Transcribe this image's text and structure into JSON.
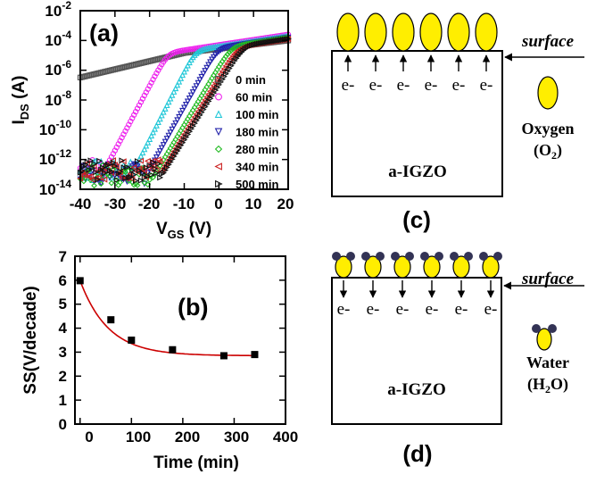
{
  "chart_data": [
    {
      "type": "scatter",
      "panel_label": "(a)",
      "title": "",
      "ylabel": "I",
      "ylabel_sub": "DS",
      "ylabel_unit": " (A)",
      "xlabel": "V",
      "xlabel_sub": "GS",
      "xlabel_unit": " (V)",
      "xlim": [
        -40,
        20
      ],
      "ylim_exp": [
        -14,
        -2
      ],
      "yscale": "log",
      "x_ticks": [
        "-40",
        "-30",
        "-20",
        "-10",
        "0",
        "10",
        "20"
      ],
      "y_ticks": [
        {
          "base": "10",
          "exp": "-2"
        },
        {
          "base": "10",
          "exp": "-4"
        },
        {
          "base": "10",
          "exp": "-6"
        },
        {
          "base": "10",
          "exp": "-8"
        },
        {
          "base": "10",
          "exp": "-10"
        },
        {
          "base": "10",
          "exp": "-12"
        },
        {
          "base": "10",
          "exp": "-14"
        }
      ],
      "series": [
        {
          "name": "0 min",
          "marker": "square",
          "color": "#555555",
          "mode": "on",
          "ion": -4.6,
          "slope": 0.016
        },
        {
          "name": "60 min",
          "marker": "circle",
          "color": "#ee22ee",
          "mode": "trans",
          "von": -33,
          "ss": 2.3,
          "ion": -3.6,
          "ioff": -12.7
        },
        {
          "name": "100 min",
          "marker": "triangle-up",
          "color": "#22c8d8",
          "mode": "trans",
          "von": -25,
          "ss": 2.2,
          "ion": -3.7,
          "ioff": -12.9
        },
        {
          "name": "180 min",
          "marker": "triangle-down",
          "color": "#2222aa",
          "mode": "trans",
          "von": -21,
          "ss": 2.4,
          "ion": -3.8,
          "ioff": -13.1
        },
        {
          "name": "280 min",
          "marker": "diamond",
          "color": "#22bb22",
          "mode": "trans",
          "von": -19,
          "ss": 2.55,
          "ion": -3.8,
          "ioff": -13.2
        },
        {
          "name": "340 min",
          "marker": "triangle-left",
          "color": "#cc2222",
          "mode": "trans",
          "von": -16.5,
          "ss": 2.6,
          "ion": -3.9,
          "ioff": -12.8
        },
        {
          "name": "500 min",
          "marker": "triangle-right",
          "color": "#111111",
          "mode": "trans",
          "von": -16,
          "ss": 2.7,
          "ion": -3.9,
          "ioff": -12.9
        }
      ]
    },
    {
      "type": "scatter",
      "panel_label": "(b)",
      "title": "",
      "xlabel": "Time (min)",
      "ylabel": "SS(V/decade)",
      "xlim": [
        -10,
        400
      ],
      "ylim": [
        0,
        7
      ],
      "x_ticks": [
        0,
        100,
        200,
        300,
        400
      ],
      "y_ticks": [
        0,
        1,
        2,
        3,
        4,
        5,
        6,
        7
      ],
      "points": {
        "x": [
          0,
          60,
          100,
          180,
          280,
          340
        ],
        "y": [
          5.98,
          4.35,
          3.5,
          3.1,
          2.85,
          2.9
        ]
      },
      "fit": {
        "color": "#cc0000",
        "y0": 2.85,
        "a": 3.13,
        "tau": 55
      }
    }
  ],
  "diagrams": {
    "c": {
      "label": "(c)",
      "surface_label": "surface",
      "material": "a-IGZO",
      "electron": "e-",
      "electron_count": 6,
      "molecule_label": "Oxygen",
      "formula_open": "(O",
      "formula_sub": "2",
      "formula_close": ")",
      "molecule_color": "#ffee00"
    },
    "d": {
      "label": "(d)",
      "surface_label": "surface",
      "material": "a-IGZO",
      "electron": "e-",
      "electron_count": 6,
      "molecule_label": "Water",
      "formula_open": "(H",
      "formula_sub": "2",
      "formula_close": "O)",
      "molecule_color": "#ffee00",
      "hydrogen_color": "#333355"
    }
  }
}
